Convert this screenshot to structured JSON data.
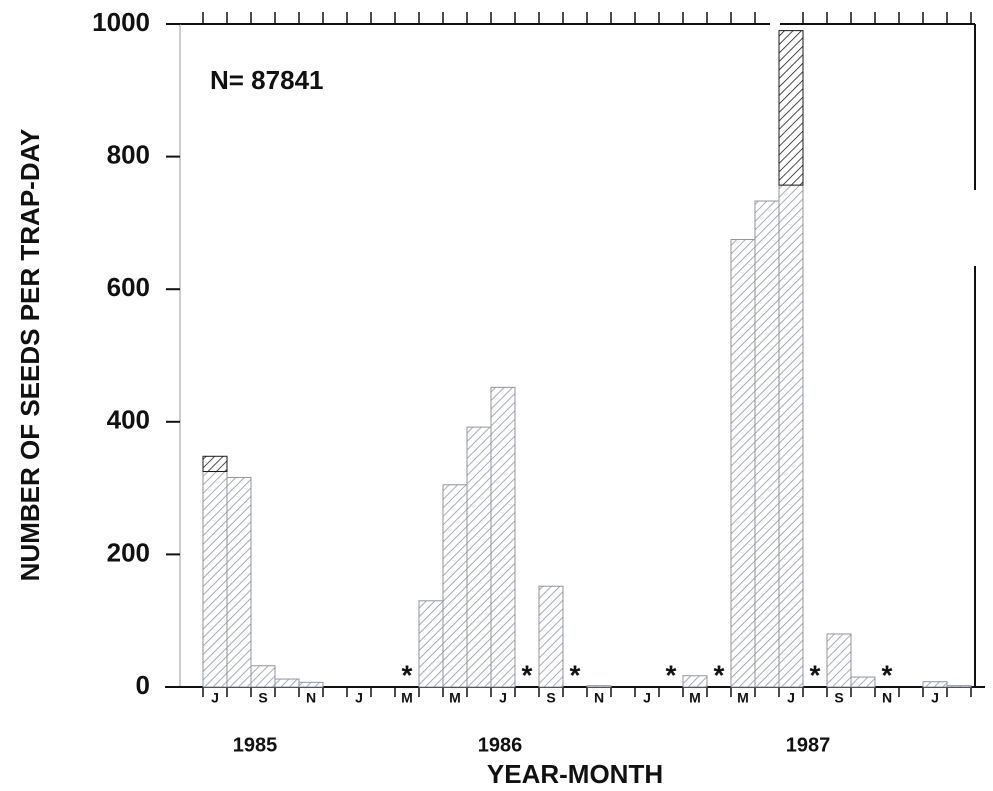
{
  "chart_data": {
    "type": "stacked_bar",
    "annotation": "N= 87841",
    "x_label": "YEAR-MONTH",
    "y_label": "NUMBER OF SEEDS PER TRAP-DAY",
    "categories": [
      "J",
      null,
      "S",
      null,
      "N",
      null,
      "J",
      null,
      "M",
      null,
      "M",
      null,
      "J",
      null,
      "S",
      null,
      "N",
      null,
      "J",
      null,
      "M",
      null,
      "M",
      null,
      "J",
      null,
      "S",
      null,
      "N",
      null,
      "J",
      null
    ],
    "x_group_labels": [
      "1985",
      "1986",
      "1987"
    ],
    "no_data_symbol": "*",
    "series": [
      {
        "color": "#8f96a3",
        "values": [
          325,
          316,
          32,
          12,
          7,
          0,
          0,
          0,
          null,
          130,
          305,
          392,
          452,
          null,
          152,
          null,
          2,
          0,
          0,
          null,
          17,
          null,
          675,
          733,
          757,
          null,
          80,
          15,
          null,
          0,
          8,
          2
        ]
      },
      {
        "color": "#1a1a1a",
        "values": [
          23,
          0,
          0,
          0,
          0,
          0,
          0,
          0,
          null,
          0,
          0,
          0,
          0,
          null,
          0,
          null,
          0,
          0,
          0,
          null,
          0,
          null,
          0,
          0,
          233,
          null,
          0,
          0,
          null,
          0,
          0,
          0
        ]
      }
    ],
    "ylim": [
      0,
      1000
    ],
    "yticks": [
      0,
      200,
      400,
      600,
      800,
      1000
    ]
  }
}
